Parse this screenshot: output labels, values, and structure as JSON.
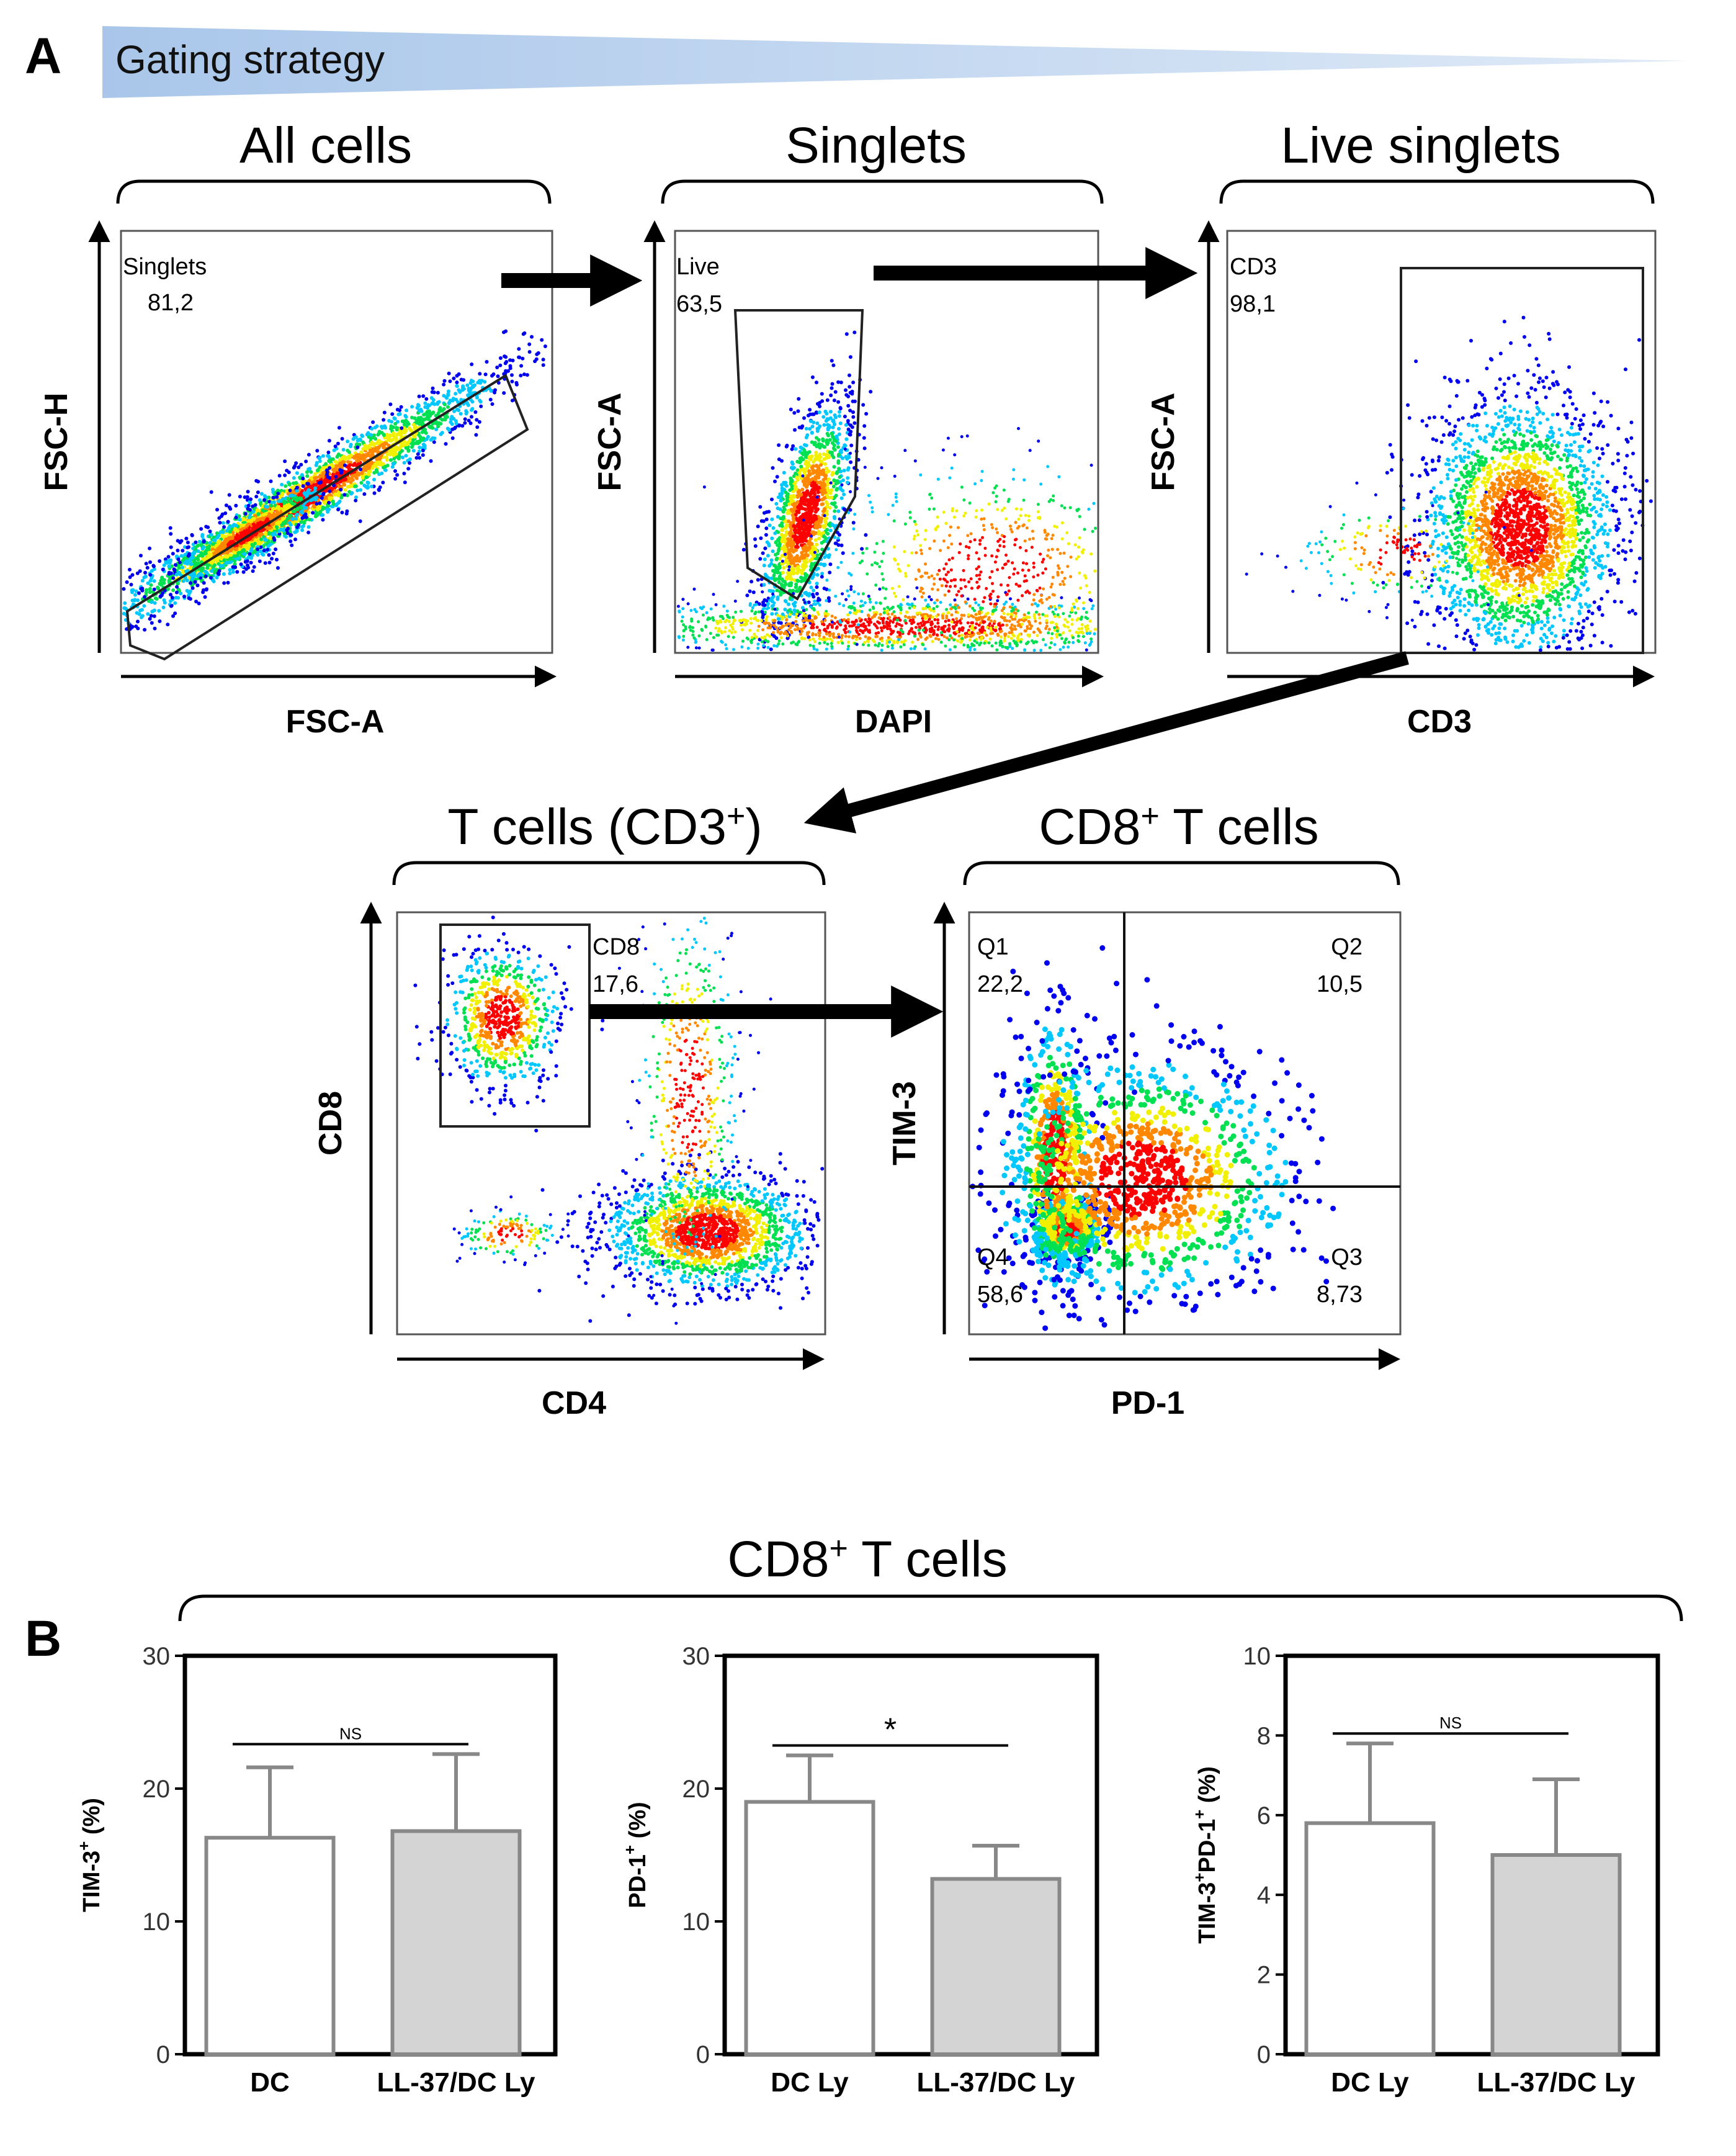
{
  "panel_a": {
    "letter": "A",
    "banner": "Gating strategy",
    "plots": [
      {
        "key": "all",
        "title": "All cells",
        "xlabel": "FSC-A",
        "ylabel": "FSC-H",
        "gate_name": "Singlets",
        "gate_value": "81,2"
      },
      {
        "key": "singlets",
        "title": "Singlets",
        "xlabel": "DAPI",
        "ylabel": "FSC-A",
        "gate_name": "Live",
        "gate_value": "63,5"
      },
      {
        "key": "live",
        "title": "Live singlets",
        "xlabel": "CD3",
        "ylabel": "FSC-A",
        "gate_name": "CD3",
        "gate_value": "98,1"
      },
      {
        "key": "tcells",
        "title": "T cells (CD3",
        "title_sup": "+",
        "title_end": ")",
        "xlabel": "CD4",
        "ylabel": "CD8",
        "gate_name": "CD8",
        "gate_value": "17,6"
      },
      {
        "key": "cd8",
        "title": "CD8",
        "title_sup": "+",
        "title_end": " T cells",
        "xlabel": "PD-1",
        "ylabel": "TIM-3",
        "quadrants": [
          {
            "name": "Q1",
            "value": "22,2"
          },
          {
            "name": "Q2",
            "value": "10,5"
          },
          {
            "name": "Q4",
            "value": "58,6"
          },
          {
            "name": "Q3",
            "value": "8,73"
          }
        ]
      }
    ]
  },
  "panel_b": {
    "letter": "B",
    "group_title": "CD8",
    "group_title_sup": "+",
    "group_title_end": " T cells"
  },
  "colors": {
    "banner": "#a9c6ea",
    "bar_ctrl": "#ffffff",
    "bar_treat": "#d4d4d4",
    "bar_edge": "#888888",
    "density": [
      "#0000ee",
      "#00c8ff",
      "#00e050",
      "#f0f000",
      "#ff8800",
      "#ff0000"
    ]
  },
  "chart_data": [
    {
      "type": "bar",
      "key": "b1",
      "categories": [
        "DC",
        "LL-37/DC Ly"
      ],
      "values": [
        16.3,
        16.8
      ],
      "errors": [
        5.3,
        5.8
      ],
      "ylabel": "TIM-3",
      "ylabel_sup": "+",
      "ylabel_end": " (%)",
      "ylim": [
        0,
        30
      ],
      "yticks": [
        0,
        10,
        20,
        30
      ],
      "significance": "NS"
    },
    {
      "type": "bar",
      "key": "b2",
      "categories": [
        "DC Ly",
        "LL-37/DC Ly"
      ],
      "values": [
        19.0,
        13.2
      ],
      "errors": [
        3.5,
        2.5
      ],
      "ylabel": "PD-1",
      "ylabel_sup": "+",
      "ylabel_end": " (%)",
      "ylim": [
        0,
        30
      ],
      "yticks": [
        0,
        10,
        20,
        30
      ],
      "significance": "*"
    },
    {
      "type": "bar",
      "key": "b3",
      "categories": [
        "DC Ly",
        "LL-37/DC Ly"
      ],
      "values": [
        5.8,
        5.0
      ],
      "errors": [
        2.0,
        1.9
      ],
      "ylabel": "TIM-3",
      "ylabel_sup": "+",
      "ylabel_mid": "PD-1",
      "ylabel_sup2": "+",
      "ylabel_end": " (%)",
      "ylim": [
        0,
        10
      ],
      "yticks": [
        0,
        2,
        4,
        6,
        8,
        10
      ],
      "significance": "NS"
    }
  ]
}
